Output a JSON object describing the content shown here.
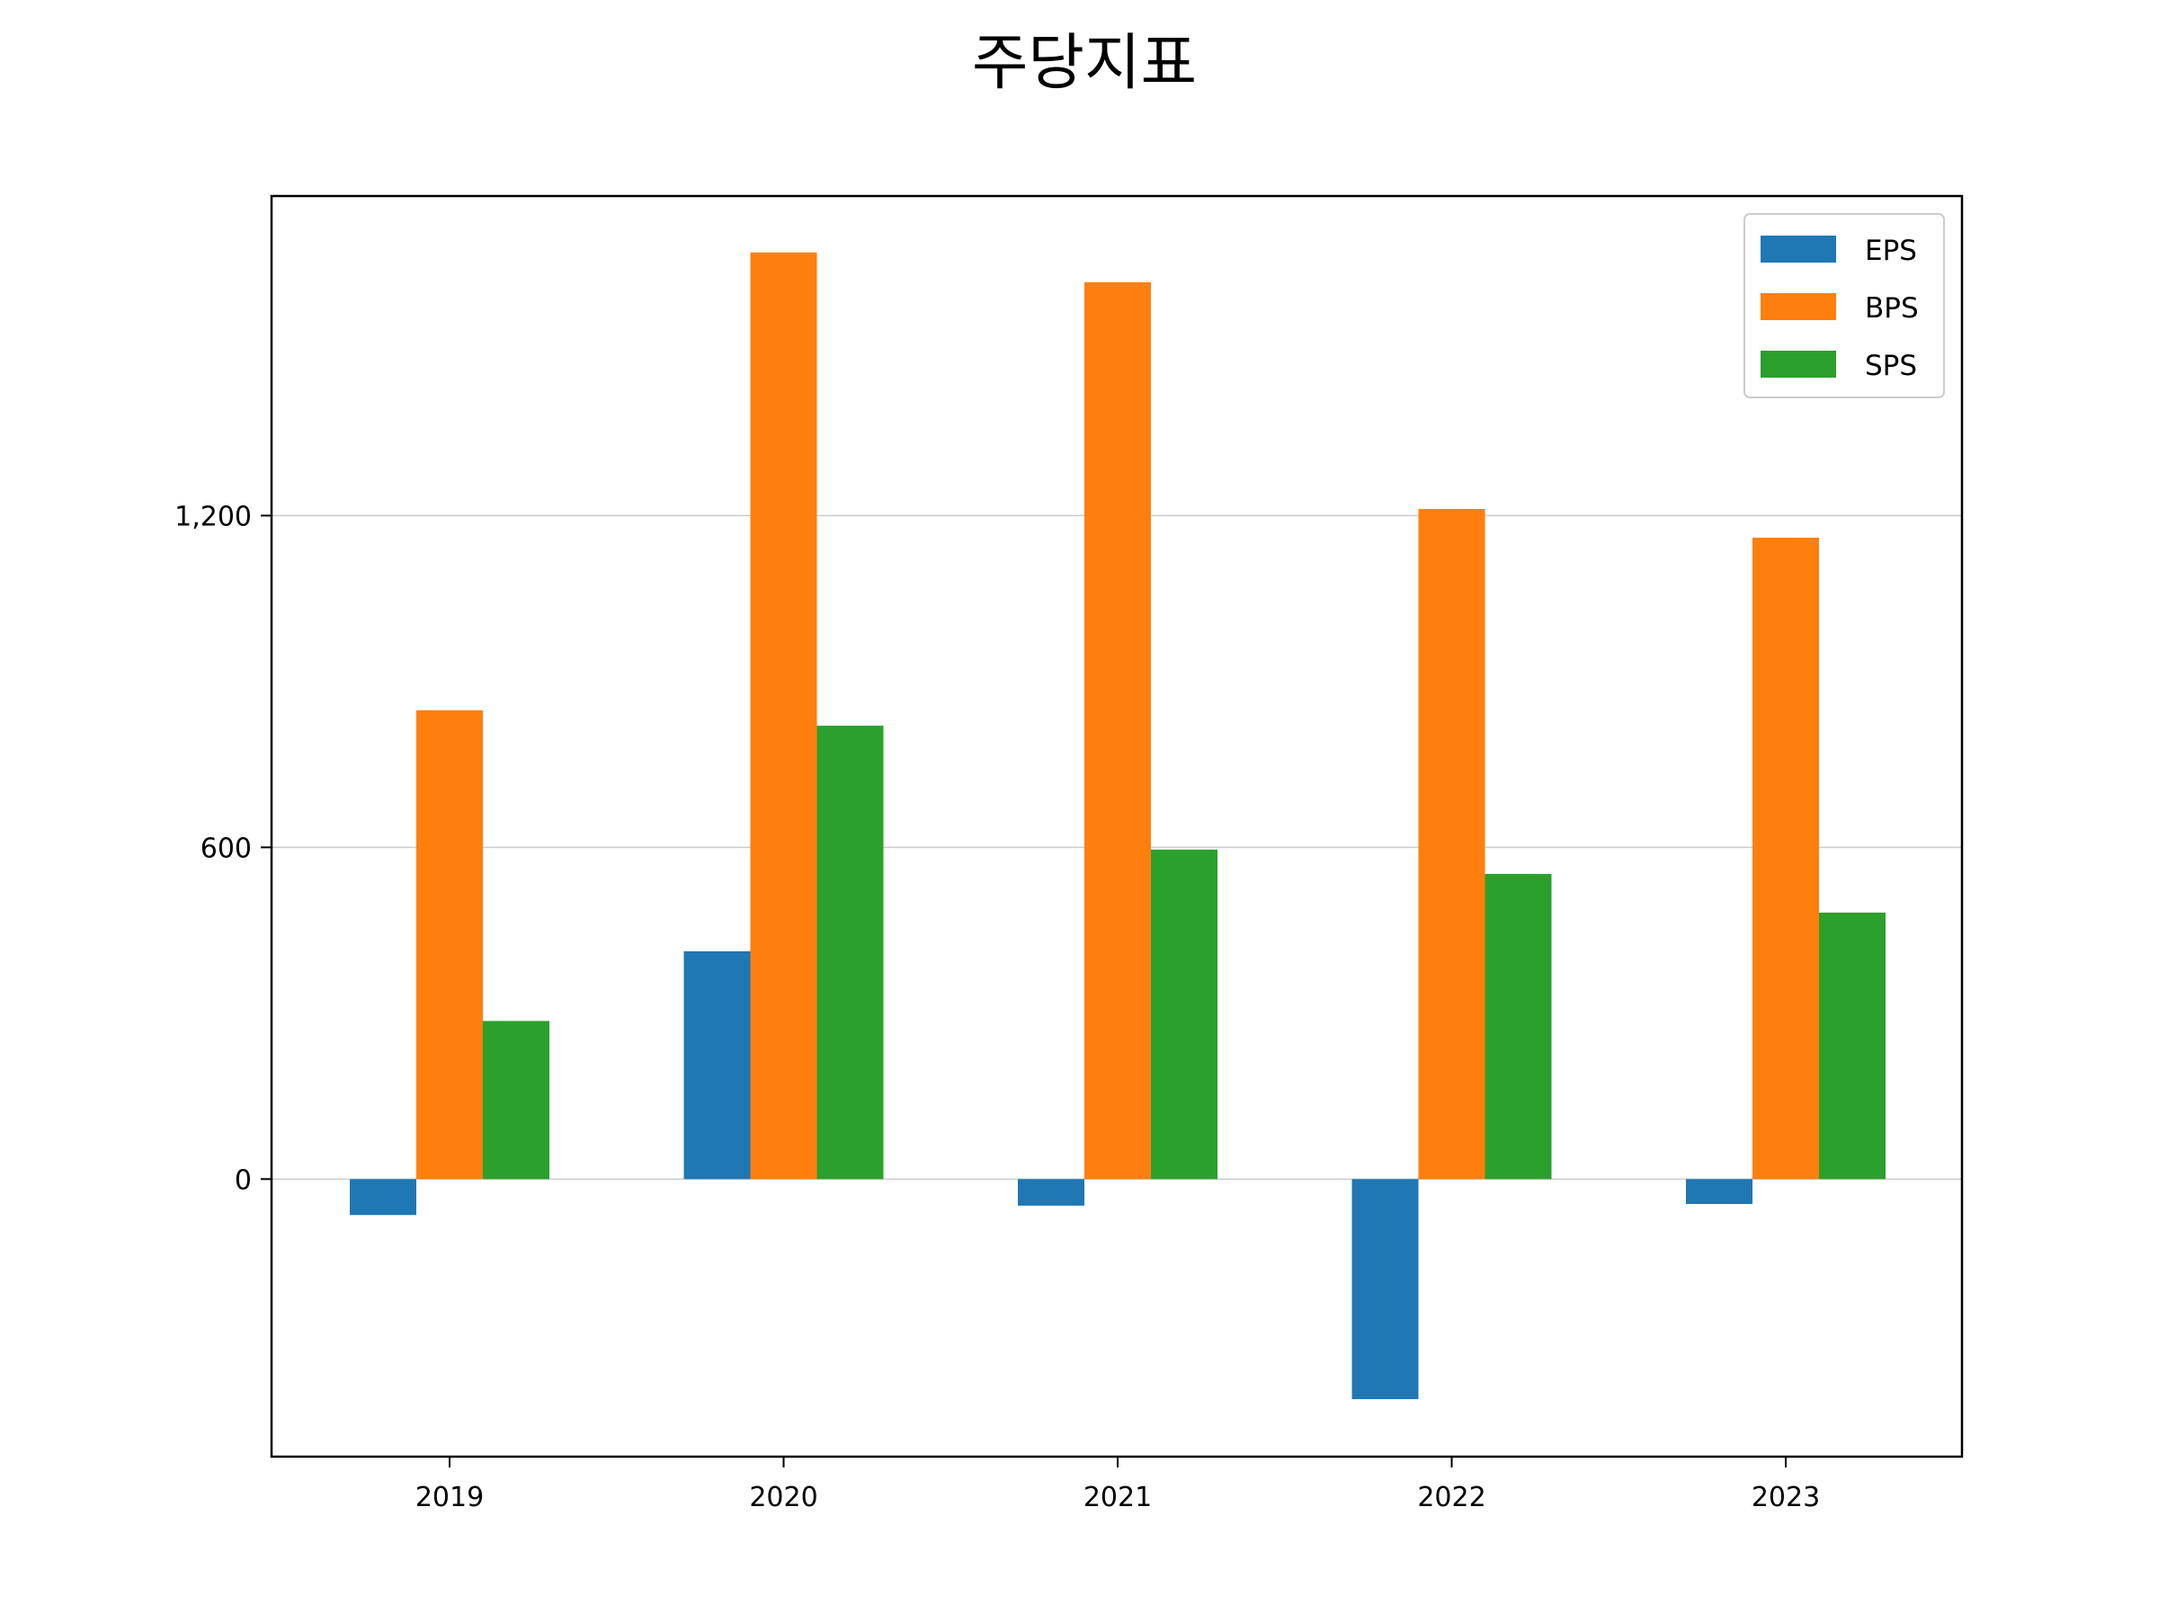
{
  "chart_data": {
    "type": "bar",
    "title": "주당지표",
    "xlabel": "",
    "ylabel": "",
    "categories": [
      "2019",
      "2020",
      "2021",
      "2022",
      "2023"
    ],
    "series": [
      {
        "name": "EPS",
        "color": "#1f77b4",
        "values": [
          -65,
          412,
          -48,
          -398,
          -45
        ]
      },
      {
        "name": "BPS",
        "color": "#ff7f0e",
        "values": [
          848,
          1676,
          1622,
          1212,
          1160
        ]
      },
      {
        "name": "SPS",
        "color": "#2ca02c",
        "values": [
          286,
          820,
          596,
          552,
          482
        ]
      }
    ],
    "yticks": [
      0,
      600,
      1200
    ],
    "ytick_labels": [
      "0",
      "600",
      "1,200"
    ],
    "ylim": [
      -502,
      1778
    ],
    "grid": "y",
    "legend_position": "upper right"
  }
}
